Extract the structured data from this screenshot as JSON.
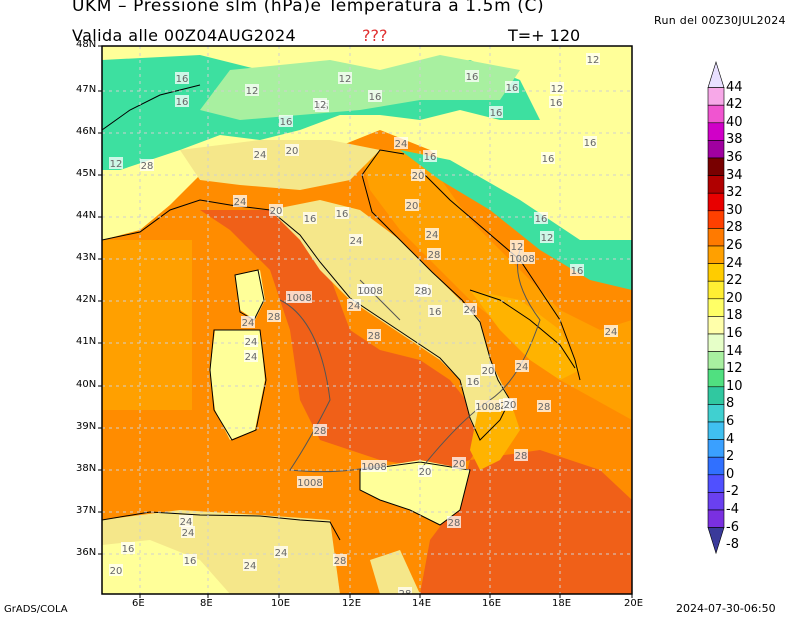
{
  "header": {
    "title": "UKM – Pressione slm (hPa)e Temperatura a 1.5m (C)",
    "validity": "Valida alle 00Z04AUG2024",
    "question_marks": "???",
    "timestep": "T=+ 120",
    "run": "Run del 00Z30JUL2024"
  },
  "footer": {
    "software": "GrADS/COLA",
    "timestamp": "2024-07-30-06:50"
  },
  "axes": {
    "lat_labels": [
      "48N",
      "47N",
      "46N",
      "45N",
      "44N",
      "43N",
      "42N",
      "41N",
      "40N",
      "39N",
      "38N",
      "37N",
      "36N"
    ],
    "lon_labels": [
      "6E",
      "8E",
      "10E",
      "12E",
      "14E",
      "16E",
      "18E",
      "20E"
    ]
  },
  "colorbar": {
    "labels": [
      "44",
      "42",
      "40",
      "38",
      "36",
      "34",
      "32",
      "30",
      "28",
      "26",
      "24",
      "22",
      "20",
      "18",
      "16",
      "14",
      "12",
      "10",
      "8",
      "6",
      "4",
      "2",
      "0",
      "-2",
      "-4",
      "-6",
      "-8"
    ],
    "colors": [
      "#e8e0ff",
      "#f7a8e8",
      "#f055d0",
      "#d000c8",
      "#a000a0",
      "#780000",
      "#b00000",
      "#e80000",
      "#ff4000",
      "#ff7a00",
      "#ffa000",
      "#ffcc00",
      "#ffee33",
      "#ffff66",
      "#ffffaa",
      "#e6ffc8",
      "#a8f0a0",
      "#50e080",
      "#30c8a0",
      "#40d0d0",
      "#40c0f0",
      "#3aa0ff",
      "#3070ff",
      "#5050ff",
      "#6a40f0",
      "#7a30e0",
      "#3a3a9a"
    ]
  },
  "map": {
    "land_colors": {
      "sea_warm": "#ff8c00",
      "sea_hot": "#f06018",
      "inland_hot": "#ffb300",
      "cool": "#ffff99",
      "mountain": "#3de0a0",
      "warm_land": "#f5e78a"
    },
    "isobar_labels": [
      "1008",
      "1008",
      "1008",
      "1008",
      "1008",
      "1008"
    ],
    "temp_labels": [
      "16",
      "16",
      "12",
      "12",
      "16",
      "16",
      "12",
      "16",
      "16",
      "16",
      "12",
      "16",
      "12",
      "16",
      "24",
      "20",
      "24",
      "16",
      "20",
      "16",
      "16",
      "12",
      "28",
      "24",
      "20",
      "16",
      "16",
      "24",
      "24",
      "12",
      "12",
      "16",
      "16",
      "20",
      "20",
      "28",
      "28",
      "28",
      "24",
      "24",
      "24",
      "24",
      "20",
      "16",
      "24",
      "24",
      "16",
      "28",
      "28",
      "20",
      "28",
      "28",
      "20",
      "20",
      "24",
      "24",
      "20",
      "28",
      "28",
      "24",
      "16",
      "24",
      "20",
      "16",
      "24",
      "20",
      "28"
    ]
  }
}
